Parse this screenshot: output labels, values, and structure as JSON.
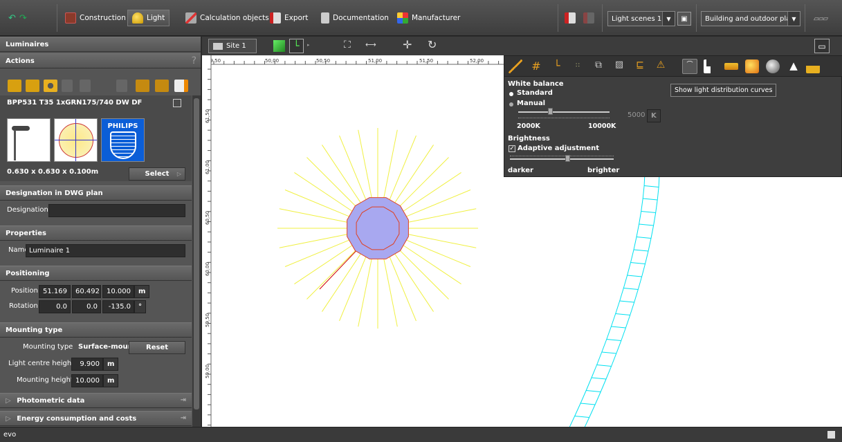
{
  "menu": {
    "items": [
      {
        "label": "Construction",
        "icon": "construction-icon",
        "active": false
      },
      {
        "label": "Light",
        "icon": "light-icon",
        "active": true
      },
      {
        "label": "Calculation objects",
        "icon": "calculation-icon",
        "active": false
      },
      {
        "label": "Export",
        "icon": "export-icon",
        "active": false
      },
      {
        "label": "Documentation",
        "icon": "documentation-icon",
        "active": false
      },
      {
        "label": "Manufacturer",
        "icon": "manufacturer-icon",
        "active": false
      }
    ],
    "light_scenes": "Light scenes 1",
    "project_type": "Building and outdoor pla..."
  },
  "left": {
    "luminaires_title": "Luminaires",
    "actions_title": "Actions",
    "actions_help": "?",
    "product_name": "BPP531 T35 1xGRN175/740 DW DF",
    "brand_logo": "PHILIPS",
    "dimensions": "0.630 x 0.630 x 0.100m",
    "select_button": "Select",
    "designation_section": "Designation in DWG plan",
    "designation_label": "Designation",
    "designation_value": "",
    "properties_section": "Properties",
    "name_label": "Name",
    "name_value": "Luminaire 1",
    "positioning_section": "Positioning",
    "position_label": "Position",
    "position": [
      "51.169",
      "60.492",
      "10.000"
    ],
    "position_unit": "m",
    "rotation_label": "Rotation",
    "rotation": [
      "0.0",
      "0.0",
      "-135.0"
    ],
    "rotation_unit": "°",
    "mounting_section": "Mounting type",
    "mounting_type_label": "Mounting type",
    "mounting_type_value": "Surface-mounted",
    "reset_button": "Reset",
    "light_centre_label": "Light centre height",
    "light_centre_value": "9.900",
    "light_centre_unit": "m",
    "mounting_height_label": "Mounting height",
    "mounting_height_value": "10.000",
    "mounting_height_unit": "m",
    "photometric_section": "Photometric data",
    "energy_section": "Energy consumption and costs"
  },
  "viewport": {
    "site_label": "Site 1",
    "ruler_top": [
      "49,50",
      "50,00",
      "50,50",
      "51,00",
      "51,50",
      "52,00"
    ],
    "ruler_left": [
      "61,50",
      "61,00",
      "60,50",
      "60,00",
      "59,50",
      "59,00"
    ]
  },
  "popup": {
    "white_balance_title": "White balance",
    "standard_label": "Standard",
    "manual_label": "Manual",
    "temp_value": "5000",
    "temp_unit": "K",
    "temp_min": "2000K",
    "temp_max": "10000K",
    "temp_slider_level": 0.35,
    "brightness_title": "Brightness",
    "adaptive_label": "Adaptive adjustment",
    "darker_label": "darker",
    "brighter_label": "brighter",
    "brightness_slider_level": 0.55,
    "tooltip": "Show light distribution curves"
  },
  "status": {
    "text": "evo"
  },
  "colors": {
    "accent": "#ffd700",
    "luminaire_fill": "#a8a8f0",
    "luminaire_edge": "#e04020",
    "rays": "#f0f040",
    "pathway": "#00e0f0",
    "axis": "#d00000"
  }
}
